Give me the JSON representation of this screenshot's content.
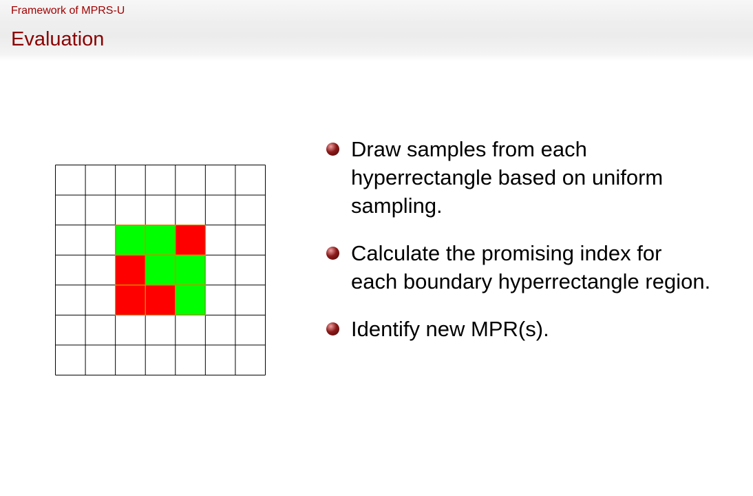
{
  "header": {
    "section_title": "Framework of MPRS-U",
    "frame_title": "Evaluation"
  },
  "figure": {
    "rows": 7,
    "cols": 7,
    "colors": {
      "green": "#00ff00",
      "red": "#ff0000",
      "empty": "#ffffff",
      "grid_line": "#000000",
      "highlight_border": "#e08a00"
    },
    "cells": [
      {
        "row": 2,
        "col": 2,
        "color": "green"
      },
      {
        "row": 2,
        "col": 3,
        "color": "green"
      },
      {
        "row": 2,
        "col": 4,
        "color": "red"
      },
      {
        "row": 3,
        "col": 2,
        "color": "red"
      },
      {
        "row": 3,
        "col": 3,
        "color": "green"
      },
      {
        "row": 3,
        "col": 4,
        "color": "green"
      },
      {
        "row": 4,
        "col": 2,
        "color": "red"
      },
      {
        "row": 4,
        "col": 3,
        "color": "red"
      },
      {
        "row": 4,
        "col": 4,
        "color": "green"
      }
    ]
  },
  "bullets": [
    "Draw samples from each hyperrectangle based on uniform sampling.",
    "Calculate the promising index for each boundary hyperrectangle region.",
    "Identify new MPR(s)."
  ],
  "bullet_color": "#8b1a1a"
}
